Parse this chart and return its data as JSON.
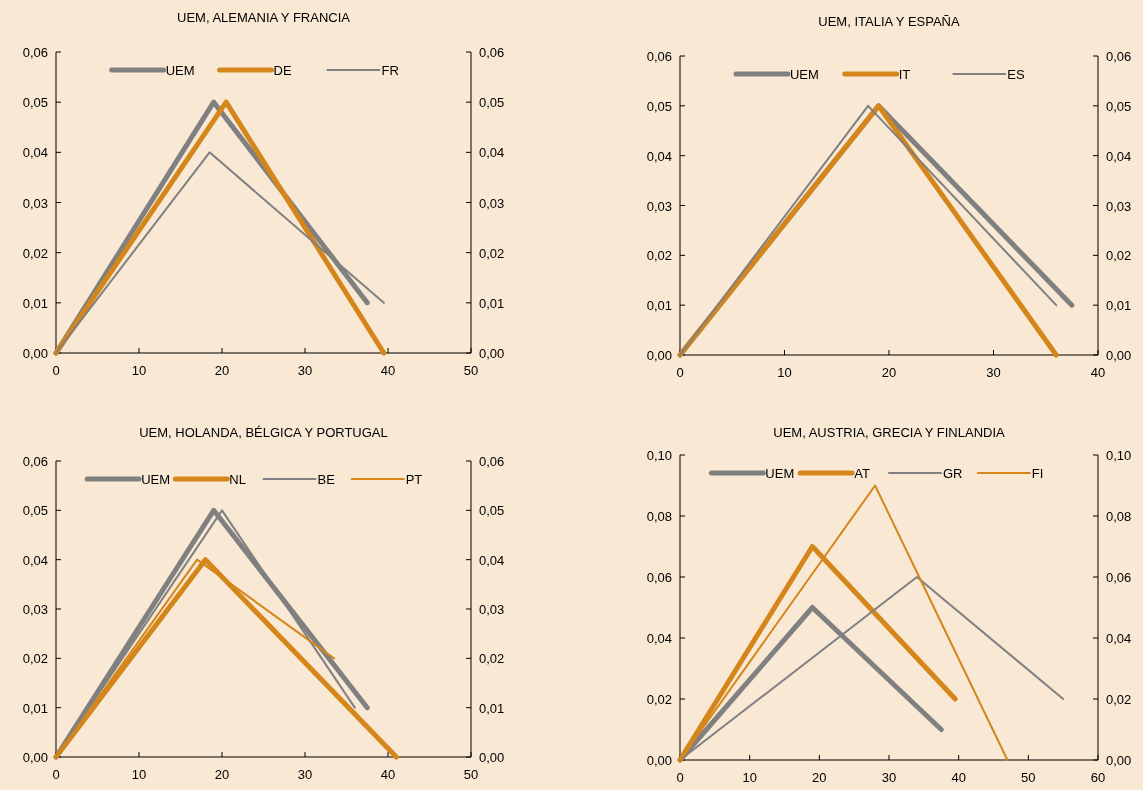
{
  "chart_data": [
    {
      "type": "line",
      "title": "UEM, ALEMANIA Y FRANCIA",
      "legend": "top",
      "xlim": [
        0,
        50
      ],
      "xticks": [
        0,
        10,
        20,
        30,
        40,
        50
      ],
      "ylim": [
        0,
        0.06
      ],
      "yticks": [
        {
          "value": 0,
          "label": "0,00"
        },
        {
          "value": 0.01,
          "label": "0,01"
        },
        {
          "value": 0.02,
          "label": "0,02"
        },
        {
          "value": 0.03,
          "label": "0,03"
        },
        {
          "value": 0.04,
          "label": "0,04"
        },
        {
          "value": 0.05,
          "label": "0,05"
        },
        {
          "value": 0.06,
          "label": "0,06"
        }
      ],
      "y2lim": [
        0,
        0.06
      ],
      "y2ticks": [
        {
          "value": 0,
          "label": "0,00"
        },
        {
          "value": 0.01,
          "label": "0,01"
        },
        {
          "value": 0.02,
          "label": "0,02"
        },
        {
          "value": 0.03,
          "label": "0,03"
        },
        {
          "value": 0.04,
          "label": "0,04"
        },
        {
          "value": 0.05,
          "label": "0,05"
        },
        {
          "value": 0.06,
          "label": "0,06"
        }
      ],
      "series": [
        {
          "name": "UEM",
          "color": "#808080",
          "x": [
            0,
            19,
            37.5
          ],
          "values": [
            0,
            0.05,
            0.01
          ]
        },
        {
          "name": "DE",
          "color": "#d4861a",
          "x": [
            0,
            20.5,
            39.5
          ],
          "values": [
            0,
            0.05,
            0
          ]
        },
        {
          "name": "FR",
          "color": "#808080",
          "x": [
            0,
            18.5,
            39.5
          ],
          "values": [
            0,
            0.04,
            0.01
          ]
        }
      ]
    },
    {
      "type": "line",
      "title": "UEM, ITALIA Y ESPAÑA",
      "legend": "top",
      "xlim": [
        0,
        40
      ],
      "xticks": [
        0,
        10,
        20,
        30,
        40
      ],
      "ylim": [
        0,
        0.06
      ],
      "yticks": [
        {
          "value": 0,
          "label": "0,00"
        },
        {
          "value": 0.01,
          "label": "0,01"
        },
        {
          "value": 0.02,
          "label": "0,02"
        },
        {
          "value": 0.03,
          "label": "0,03"
        },
        {
          "value": 0.04,
          "label": "0,04"
        },
        {
          "value": 0.05,
          "label": "0,05"
        },
        {
          "value": 0.06,
          "label": "0,06"
        }
      ],
      "y2lim": [
        0,
        0.06
      ],
      "y2ticks": [
        {
          "value": 0,
          "label": "0,00"
        },
        {
          "value": 0.01,
          "label": "0,01"
        },
        {
          "value": 0.02,
          "label": "0,02"
        },
        {
          "value": 0.03,
          "label": "0,03"
        },
        {
          "value": 0.04,
          "label": "0,04"
        },
        {
          "value": 0.05,
          "label": "0,05"
        },
        {
          "value": 0.06,
          "label": "0,06"
        }
      ],
      "series": [
        {
          "name": "UEM",
          "color": "#808080",
          "x": [
            0,
            19,
            37.5
          ],
          "values": [
            0,
            0.05,
            0.01
          ]
        },
        {
          "name": "IT",
          "color": "#d4861a",
          "x": [
            0,
            19,
            36
          ],
          "values": [
            0,
            0.05,
            0
          ]
        },
        {
          "name": "ES",
          "color": "#808080",
          "x": [
            0,
            18,
            36
          ],
          "values": [
            0,
            0.05,
            0.01
          ]
        }
      ]
    },
    {
      "type": "line",
      "title": "UEM, HOLANDA, BÉLGICA Y PORTUGAL",
      "legend": "top",
      "xlim": [
        0,
        50
      ],
      "xticks": [
        0,
        10,
        20,
        30,
        40,
        50
      ],
      "ylim": [
        0,
        0.06
      ],
      "yticks": [
        {
          "value": 0,
          "label": "0,00"
        },
        {
          "value": 0.01,
          "label": "0,01"
        },
        {
          "value": 0.02,
          "label": "0,02"
        },
        {
          "value": 0.03,
          "label": "0,03"
        },
        {
          "value": 0.04,
          "label": "0,04"
        },
        {
          "value": 0.05,
          "label": "0,05"
        },
        {
          "value": 0.06,
          "label": "0,06"
        }
      ],
      "y2lim": [
        0,
        0.06
      ],
      "y2ticks": [
        {
          "value": 0,
          "label": "0,00"
        },
        {
          "value": 0.01,
          "label": "0,01"
        },
        {
          "value": 0.02,
          "label": "0,02"
        },
        {
          "value": 0.03,
          "label": "0,03"
        },
        {
          "value": 0.04,
          "label": "0,04"
        },
        {
          "value": 0.05,
          "label": "0,05"
        },
        {
          "value": 0.06,
          "label": "0,06"
        }
      ],
      "series": [
        {
          "name": "UEM",
          "color": "#808080",
          "x": [
            0,
            19,
            37.5
          ],
          "values": [
            0,
            0.05,
            0.01
          ]
        },
        {
          "name": "NL",
          "color": "#d4861a",
          "x": [
            0,
            18,
            41
          ],
          "values": [
            0,
            0.04,
            0
          ]
        },
        {
          "name": "BE",
          "color": "#808080",
          "x": [
            0,
            20,
            36
          ],
          "values": [
            0,
            0.05,
            0.01
          ]
        },
        {
          "name": "PT",
          "color": "#d4861a",
          "x": [
            0,
            17,
            33.5
          ],
          "values": [
            0,
            0.04,
            0.02
          ]
        }
      ]
    },
    {
      "type": "line",
      "title": "UEM, AUSTRIA, GRECIA Y FINLANDIA",
      "legend": "top",
      "xlim": [
        0,
        60
      ],
      "xticks": [
        0,
        10,
        20,
        30,
        40,
        50,
        60
      ],
      "ylim": [
        0,
        0.1
      ],
      "yticks": [
        {
          "value": 0,
          "label": "0,00"
        },
        {
          "value": 0.02,
          "label": "0,02"
        },
        {
          "value": 0.04,
          "label": "0,04"
        },
        {
          "value": 0.06,
          "label": "0,06"
        },
        {
          "value": 0.08,
          "label": "0,08"
        },
        {
          "value": 0.1,
          "label": "0,10"
        }
      ],
      "y2lim": [
        0,
        0.1
      ],
      "y2ticks": [
        {
          "value": 0,
          "label": "0,00"
        },
        {
          "value": 0.02,
          "label": "0,02"
        },
        {
          "value": 0.04,
          "label": "0,04"
        },
        {
          "value": 0.06,
          "label": "0,06"
        },
        {
          "value": 0.08,
          "label": "0,08"
        },
        {
          "value": 0.1,
          "label": "0,10"
        }
      ],
      "series": [
        {
          "name": "UEM",
          "color": "#808080",
          "x": [
            0,
            19,
            37.5
          ],
          "values": [
            0,
            0.05,
            0.01
          ]
        },
        {
          "name": "AT",
          "color": "#d4861a",
          "x": [
            0,
            19,
            39.5
          ],
          "values": [
            0,
            0.07,
            0.02
          ]
        },
        {
          "name": "GR",
          "color": "#808080",
          "x": [
            0,
            34,
            55
          ],
          "values": [
            0,
            0.06,
            0.02
          ]
        },
        {
          "name": "FI",
          "color": "#d4861a",
          "x": [
            0,
            28,
            47
          ],
          "values": [
            0,
            0.09,
            0
          ]
        }
      ]
    }
  ]
}
